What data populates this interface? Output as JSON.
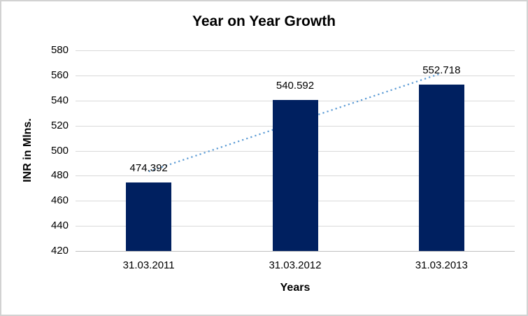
{
  "chart_data": {
    "type": "bar",
    "title": "Year on Year Growth",
    "categories": [
      "31.03.2011",
      "31.03.2012",
      "31.03.2013"
    ],
    "values": [
      474.392,
      540.592,
      552.718
    ],
    "value_labels": [
      "474.392",
      "540.592",
      "552.718"
    ],
    "xlabel": "Years",
    "ylabel": "INR in Mlns.",
    "ylim": [
      420,
      580
    ],
    "ytick_interval": 20,
    "yticks": [
      420,
      440,
      460,
      480,
      500,
      520,
      540,
      560,
      580
    ],
    "grid": "horizontal",
    "legend": "none",
    "bar_color": "#002060",
    "trendline": {
      "type": "linear",
      "style": "dotted",
      "color": "#5B9BD5"
    },
    "colors": {
      "gridline": "#d9d9d9",
      "axis_line": "#bfbfbf",
      "text": "#000000",
      "background": "#ffffff",
      "border": "#d2d2d2"
    }
  }
}
